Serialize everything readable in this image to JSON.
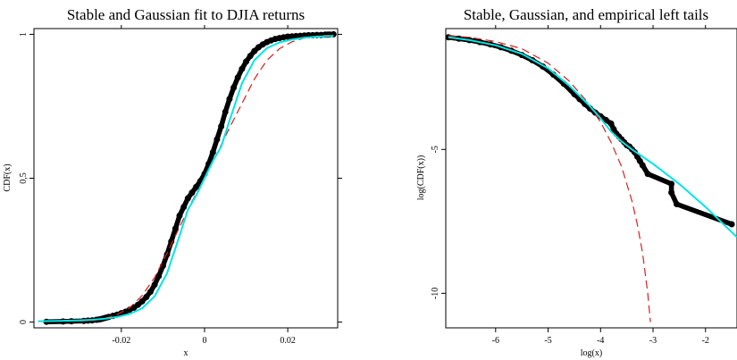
{
  "colors": {
    "stable": "#00e5e5",
    "gaussian": "#d62020",
    "empirical": "#000000",
    "background": "#ffffff"
  },
  "chart_data": [
    {
      "type": "line",
      "title": "Stable and Gaussian fit to DJIA returns",
      "xlabel": "x",
      "ylabel": "CDF(x)",
      "xlim": [
        -0.041,
        0.032
      ],
      "ylim": [
        -0.02,
        1.02
      ],
      "x_ticks": [
        -0.02,
        0,
        0.02
      ],
      "x_tick_labels": [
        "-0.02",
        "0",
        "0.02"
      ],
      "y_ticks": [
        0,
        0.5,
        1
      ],
      "y_tick_labels": [
        "0",
        "0,5",
        "1"
      ],
      "grid": false,
      "legend": "none",
      "series": [
        {
          "style": "empirical-points",
          "color": "#000000",
          "x": [
            -0.038,
            -0.034,
            -0.032,
            -0.029,
            -0.028,
            -0.027,
            -0.026,
            -0.0255,
            -0.025,
            -0.0245,
            -0.024,
            -0.0235,
            -0.023,
            -0.022,
            -0.021,
            -0.02,
            -0.019,
            -0.018,
            -0.017,
            -0.016,
            -0.015,
            -0.014,
            -0.013,
            -0.012,
            -0.011,
            -0.01,
            -0.009,
            -0.008,
            -0.007,
            -0.006,
            -0.005,
            -0.004,
            -0.003,
            -0.002,
            -0.001,
            0,
            0.001,
            0.002,
            0.003,
            0.004,
            0.005,
            0.006,
            0.007,
            0.008,
            0.009,
            0.01,
            0.011,
            0.012,
            0.013,
            0.014,
            0.015,
            0.016,
            0.017,
            0.018,
            0.019,
            0.02,
            0.021,
            0.022,
            0.023,
            0.024,
            0.025,
            0.026,
            0.027,
            0.028,
            0.029,
            0.0295,
            0.03,
            0.031
          ],
          "y": [
            0.001,
            0.002,
            0.003,
            0.004,
            0.005,
            0.006,
            0.008,
            0.009,
            0.01,
            0.012,
            0.014,
            0.016,
            0.018,
            0.022,
            0.026,
            0.031,
            0.036,
            0.043,
            0.05,
            0.06,
            0.072,
            0.087,
            0.105,
            0.13,
            0.16,
            0.195,
            0.235,
            0.28,
            0.325,
            0.37,
            0.4,
            0.43,
            0.45,
            0.47,
            0.49,
            0.515,
            0.55,
            0.59,
            0.635,
            0.68,
            0.73,
            0.775,
            0.815,
            0.85,
            0.88,
            0.905,
            0.925,
            0.942,
            0.955,
            0.965,
            0.973,
            0.979,
            0.984,
            0.987,
            0.99,
            0.992,
            0.993,
            0.994,
            0.995,
            0.996,
            0.997,
            0.997,
            0.998,
            0.998,
            0.999,
            0.999,
            0.9995,
            1.0
          ]
        },
        {
          "style": "solid",
          "color": "#00e5e5",
          "x": [
            -0.04,
            -0.035,
            -0.03,
            -0.027,
            -0.024,
            -0.021,
            -0.018,
            -0.015,
            -0.012,
            -0.009,
            -0.006,
            -0.004,
            -0.002,
            0,
            0.002,
            0.004,
            0.006,
            0.009,
            0.012,
            0.015,
            0.018,
            0.021,
            0.024,
            0.027,
            0.03,
            0.031
          ],
          "y": [
            0.003,
            0.004,
            0.006,
            0.008,
            0.012,
            0.018,
            0.028,
            0.048,
            0.09,
            0.17,
            0.3,
            0.39,
            0.44,
            0.5,
            0.56,
            0.61,
            0.7,
            0.83,
            0.91,
            0.952,
            0.972,
            0.982,
            0.988,
            0.992,
            0.994,
            0.995
          ]
        },
        {
          "style": "dashed",
          "color": "#d62020",
          "x": [
            -0.03,
            -0.027,
            -0.024,
            -0.021,
            -0.018,
            -0.015,
            -0.012,
            -0.009,
            -0.006,
            -0.003,
            0,
            0.003,
            0.006,
            0.009,
            0.012,
            0.015,
            0.018,
            0.021,
            0.024,
            0.027,
            0.03
          ],
          "y": [
            0.003,
            0.006,
            0.013,
            0.026,
            0.05,
            0.092,
            0.155,
            0.24,
            0.33,
            0.42,
            0.5,
            0.585,
            0.675,
            0.76,
            0.845,
            0.91,
            0.95,
            0.974,
            0.987,
            0.994,
            0.997
          ]
        }
      ]
    },
    {
      "type": "line",
      "title": "Stable, Gaussian, and empirical left tails",
      "xlabel": "log(x)",
      "ylabel": "log(CDF(x))",
      "xlim": [
        -6.95,
        -1.4
      ],
      "ylim": [
        -11.2,
        -0.8
      ],
      "x_ticks": [
        -6,
        -5,
        -4,
        -3,
        -2
      ],
      "x_tick_labels": [
        "-6",
        "-5",
        "-4",
        "-3",
        "-2"
      ],
      "y_ticks": [
        -5,
        -10
      ],
      "y_tick_labels": [
        "-5",
        "-10"
      ],
      "grid": false,
      "legend": "none",
      "series": [
        {
          "style": "empirical-points",
          "color": "#000000",
          "x": [
            -6.9,
            -6.7,
            -6.5,
            -6.3,
            -6.1,
            -5.9,
            -5.7,
            -5.5,
            -5.3,
            -5.1,
            -4.9,
            -4.7,
            -4.5,
            -4.4,
            -4.3,
            -4.2,
            -4.1,
            -4.0,
            -3.9,
            -3.8,
            -3.75,
            -3.7,
            -3.65,
            -3.6,
            -3.55,
            -3.5,
            -3.45,
            -3.4,
            -3.35,
            -3.3,
            -3.25,
            -3.2,
            -3.1,
            -2.65,
            -2.65,
            -2.55,
            -1.5
          ],
          "y": [
            -1.1,
            -1.15,
            -1.2,
            -1.27,
            -1.35,
            -1.45,
            -1.57,
            -1.72,
            -1.9,
            -2.12,
            -2.4,
            -2.72,
            -3.08,
            -3.25,
            -3.42,
            -3.58,
            -3.72,
            -3.85,
            -3.98,
            -4.1,
            -4.3,
            -4.45,
            -4.55,
            -4.65,
            -4.75,
            -4.85,
            -4.9,
            -5.0,
            -5.1,
            -5.25,
            -5.4,
            -5.55,
            -5.85,
            -6.2,
            -6.5,
            -6.9,
            -7.6
          ]
        },
        {
          "style": "solid",
          "color": "#00e5e5",
          "x": [
            -6.9,
            -6.5,
            -6.0,
            -5.5,
            -5.0,
            -4.6,
            -4.2,
            -4.0,
            -3.8,
            -3.6,
            -3.4,
            -3.0,
            -2.5,
            -2.0,
            -1.4
          ],
          "y": [
            -1.1,
            -1.2,
            -1.38,
            -1.68,
            -2.18,
            -2.78,
            -3.5,
            -3.92,
            -4.38,
            -4.72,
            -5.0,
            -5.5,
            -6.2,
            -7.0,
            -8.05
          ]
        },
        {
          "style": "dashed",
          "color": "#d62020",
          "x": [
            -6.9,
            -6.5,
            -6.0,
            -5.5,
            -5.0,
            -4.6,
            -4.3,
            -4.0,
            -3.8,
            -3.6,
            -3.4,
            -3.3,
            -3.2,
            -3.1,
            -3.05
          ],
          "y": [
            -1.05,
            -1.1,
            -1.25,
            -1.5,
            -2.0,
            -2.62,
            -3.25,
            -4.05,
            -4.75,
            -5.6,
            -6.8,
            -7.6,
            -8.6,
            -10.0,
            -11.0
          ]
        }
      ]
    }
  ]
}
